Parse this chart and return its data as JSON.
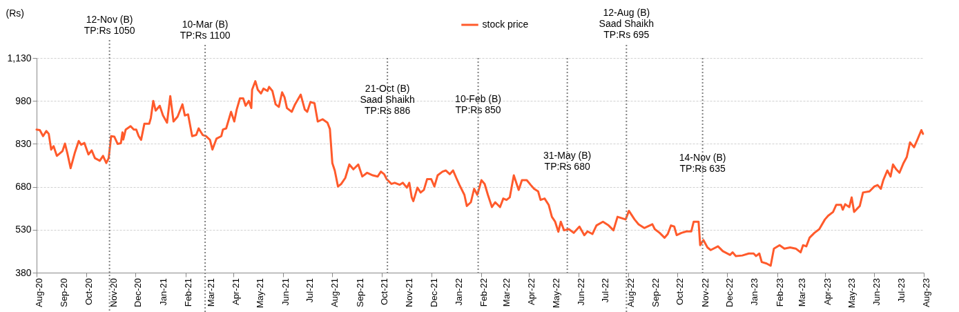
{
  "chart_data": {
    "type": "line",
    "ylabel": "(Rs)",
    "legend": "top",
    "grid": "y",
    "marker": "none",
    "line_style": "solid",
    "xlim": [
      "2020-08-14",
      "2023-08-14"
    ],
    "xticks": [
      {
        "value": "2020-08-14",
        "label": "Aug-20"
      },
      {
        "value": "2020-09-14",
        "label": "Sep-20"
      },
      {
        "value": "2020-10-14",
        "label": "Oct-20"
      },
      {
        "value": "2020-11-14",
        "label": "Nov-20"
      },
      {
        "value": "2020-12-14",
        "label": "Dec-20"
      },
      {
        "value": "2021-01-14",
        "label": "Jan-21"
      },
      {
        "value": "2021-02-14",
        "label": "Feb-21"
      },
      {
        "value": "2021-03-14",
        "label": "Mar-21"
      },
      {
        "value": "2021-04-14",
        "label": "Apr-21"
      },
      {
        "value": "2021-05-14",
        "label": "May-21"
      },
      {
        "value": "2021-06-14",
        "label": "Jun-21"
      },
      {
        "value": "2021-07-14",
        "label": "Jul-21"
      },
      {
        "value": "2021-08-14",
        "label": "Aug-21"
      },
      {
        "value": "2021-09-14",
        "label": "Sep-21"
      },
      {
        "value": "2021-10-14",
        "label": "Oct-21"
      },
      {
        "value": "2021-11-14",
        "label": "Nov-21"
      },
      {
        "value": "2021-12-14",
        "label": "Dec-21"
      },
      {
        "value": "2022-01-14",
        "label": "Jan-22"
      },
      {
        "value": "2022-02-14",
        "label": "Feb-22"
      },
      {
        "value": "2022-03-14",
        "label": "Mar-22"
      },
      {
        "value": "2022-04-14",
        "label": "Apr-22"
      },
      {
        "value": "2022-05-14",
        "label": "May-22"
      },
      {
        "value": "2022-06-14",
        "label": "Jun-22"
      },
      {
        "value": "2022-07-14",
        "label": "Jul-22"
      },
      {
        "value": "2022-08-14",
        "label": "Aug-22"
      },
      {
        "value": "2022-09-14",
        "label": "Sep-22"
      },
      {
        "value": "2022-10-14",
        "label": "Oct-22"
      },
      {
        "value": "2022-11-14",
        "label": "Nov-22"
      },
      {
        "value": "2022-12-14",
        "label": "Dec-22"
      },
      {
        "value": "2023-01-14",
        "label": "Jan-23"
      },
      {
        "value": "2023-02-14",
        "label": "Feb-23"
      },
      {
        "value": "2023-03-14",
        "label": "Mar-23"
      },
      {
        "value": "2023-04-14",
        "label": "Apr-23"
      },
      {
        "value": "2023-05-14",
        "label": "May-23"
      },
      {
        "value": "2023-06-14",
        "label": "Jun-23"
      },
      {
        "value": "2023-07-14",
        "label": "Jul-23"
      },
      {
        "value": "2023-08-14",
        "label": "Aug-23"
      }
    ],
    "ylim": [
      380,
      1130
    ],
    "yticks": [
      380,
      530,
      680,
      830,
      980,
      {
        "value": 1130,
        "label": "1,130"
      }
    ],
    "ref_lines": [
      {
        "axis": "x",
        "value": "2020-11-12",
        "label": "12-Nov (B)\nTP:Rs 1050",
        "color": "#7f7f7f",
        "line_style": "dotted"
      },
      {
        "axis": "x",
        "value": "2021-03-10",
        "label": "10-Mar (B)\nTP:Rs 1100",
        "color": "#7f7f7f",
        "line_style": "dotted"
      },
      {
        "axis": "x",
        "value": "2021-10-21",
        "label": "21-Oct (B)\nSaad Shaikh\nTP:Rs 886",
        "color": "#7f7f7f",
        "line_style": "dotted"
      },
      {
        "axis": "x",
        "value": "2022-02-10",
        "label": "10-Feb (B)\nTP:Rs 850",
        "color": "#7f7f7f",
        "line_style": "dotted"
      },
      {
        "axis": "x",
        "value": "2022-05-31",
        "label": "31-May (B)\nTP:Rs 680",
        "color": "#7f7f7f",
        "line_style": "dotted"
      },
      {
        "axis": "x",
        "value": "2022-08-12",
        "label": "12-Aug (B)\nSaad Shaikh\nTP:Rs 695",
        "color": "#7f7f7f",
        "line_style": "dotted"
      },
      {
        "axis": "x",
        "value": "2022-11-14",
        "label": "14-Nov (B)\nTP:Rs 635",
        "color": "#7f7f7f",
        "line_style": "dotted"
      }
    ],
    "series": [
      {
        "name": "stock price",
        "color": "#ff5a2b",
        "x": [
          "2020-08-14",
          "2020-08-18",
          "2020-08-22",
          "2020-08-26",
          "2020-08-29",
          "2020-09-01",
          "2020-09-04",
          "2020-09-08",
          "2020-09-15",
          "2020-09-18",
          "2020-09-21",
          "2020-09-25",
          "2020-09-30",
          "2020-10-05",
          "2020-10-08",
          "2020-10-12",
          "2020-10-17",
          "2020-10-21",
          "2020-10-25",
          "2020-10-31",
          "2020-11-04",
          "2020-11-08",
          "2020-11-11",
          "2020-11-14",
          "2020-11-18",
          "2020-11-22",
          "2020-11-26",
          "2020-11-28",
          "2020-11-29",
          "2020-12-02",
          "2020-12-08",
          "2020-12-12",
          "2020-12-15",
          "2020-12-18",
          "2020-12-21",
          "2020-12-25",
          "2020-12-31",
          "2021-01-02",
          "2021-01-05",
          "2021-01-08",
          "2021-01-13",
          "2021-01-17",
          "2021-01-22",
          "2021-01-26",
          "2021-01-30",
          "2021-02-04",
          "2021-02-10",
          "2021-02-13",
          "2021-02-17",
          "2021-02-22",
          "2021-02-27",
          "2021-03-02",
          "2021-03-07",
          "2021-03-11",
          "2021-03-16",
          "2021-03-19",
          "2021-03-24",
          "2021-03-30",
          "2021-04-01",
          "2021-04-05",
          "2021-04-11",
          "2021-04-15",
          "2021-04-18",
          "2021-04-22",
          "2021-04-26",
          "2021-04-29",
          "2021-05-03",
          "2021-05-06",
          "2021-05-07",
          "2021-05-11",
          "2021-05-14",
          "2021-05-18",
          "2021-05-21",
          "2021-05-26",
          "2021-05-28",
          "2021-06-01",
          "2021-06-05",
          "2021-06-09",
          "2021-06-13",
          "2021-06-16",
          "2021-06-19",
          "2021-06-25",
          "2021-06-29",
          "2021-07-06",
          "2021-07-11",
          "2021-07-14",
          "2021-07-18",
          "2021-07-23",
          "2021-07-27",
          "2021-08-02",
          "2021-08-08",
          "2021-08-11",
          "2021-08-14",
          "2021-08-17",
          "2021-08-21",
          "2021-08-25",
          "2021-08-30",
          "2021-09-04",
          "2021-09-09",
          "2021-09-15",
          "2021-09-20",
          "2021-09-26",
          "2021-10-03",
          "2021-10-09",
          "2021-10-13",
          "2021-10-17",
          "2021-10-20",
          "2021-10-26",
          "2021-10-30",
          "2021-11-05",
          "2021-11-09",
          "2021-11-14",
          "2021-11-17",
          "2021-11-20",
          "2021-11-22",
          "2021-11-27",
          "2021-12-01",
          "2021-12-05",
          "2021-12-09",
          "2021-12-14",
          "2021-12-18",
          "2021-12-22",
          "2021-12-28",
          "2022-01-01",
          "2022-01-06",
          "2022-01-10",
          "2022-01-14",
          "2022-01-18",
          "2022-01-24",
          "2022-01-27",
          "2022-02-01",
          "2022-02-05",
          "2022-02-09",
          "2022-02-14",
          "2022-02-18",
          "2022-02-22",
          "2022-02-27",
          "2022-03-03",
          "2022-03-09",
          "2022-03-13",
          "2022-03-17",
          "2022-03-21",
          "2022-03-26",
          "2022-04-01",
          "2022-04-05",
          "2022-04-11",
          "2022-04-16",
          "2022-04-20",
          "2022-04-25",
          "2022-04-28",
          "2022-05-03",
          "2022-05-08",
          "2022-05-12",
          "2022-05-16",
          "2022-05-20",
          "2022-05-23",
          "2022-05-27",
          "2022-06-02",
          "2022-06-08",
          "2022-06-15",
          "2022-06-21",
          "2022-06-25",
          "2022-07-01",
          "2022-07-06",
          "2022-07-14",
          "2022-07-21",
          "2022-07-27",
          "2022-08-01",
          "2022-08-11",
          "2022-08-15",
          "2022-08-16",
          "2022-08-22",
          "2022-08-27",
          "2022-09-03",
          "2022-09-13",
          "2022-09-16",
          "2022-09-22",
          "2022-09-28",
          "2022-10-02",
          "2022-10-06",
          "2022-10-10",
          "2022-10-13",
          "2022-10-19",
          "2022-10-25",
          "2022-10-31",
          "2022-11-03",
          "2022-11-09",
          "2022-11-11",
          "2022-11-15",
          "2022-11-20",
          "2022-11-24",
          "2022-12-03",
          "2022-12-09",
          "2022-12-18",
          "2022-12-21",
          "2022-12-25",
          "2023-01-02",
          "2023-01-10",
          "2023-01-16",
          "2023-01-19",
          "2023-01-23",
          "2023-01-26",
          "2023-02-01",
          "2023-02-06",
          "2023-02-10",
          "2023-02-17",
          "2023-02-23",
          "2023-03-02",
          "2023-03-09",
          "2023-03-15",
          "2023-03-18",
          "2023-03-22",
          "2023-03-26",
          "2023-04-01",
          "2023-04-07",
          "2023-04-14",
          "2023-04-18",
          "2023-04-24",
          "2023-04-28",
          "2023-05-04",
          "2023-05-06",
          "2023-05-09",
          "2023-05-14",
          "2023-05-17",
          "2023-05-20",
          "2023-05-27",
          "2023-05-31",
          "2023-06-08",
          "2023-06-14",
          "2023-06-18",
          "2023-06-22",
          "2023-06-25",
          "2023-06-30",
          "2023-07-04",
          "2023-07-07",
          "2023-07-11",
          "2023-07-15",
          "2023-07-20",
          "2023-07-24",
          "2023-07-28",
          "2023-08-02",
          "2023-08-06",
          "2023-08-11",
          "2023-08-13"
        ],
        "values": [
          880,
          878,
          857,
          875,
          865,
          810,
          822,
          788,
          805,
          831,
          797,
          745,
          797,
          840,
          827,
          833,
          793,
          807,
          780,
          771,
          788,
          763,
          780,
          857,
          855,
          830,
          832,
          870,
          845,
          880,
          892,
          880,
          880,
          857,
          844,
          900,
          900,
          920,
          980,
          946,
          963,
          929,
          904,
          997,
          908,
          925,
          968,
          929,
          933,
          857,
          861,
          884,
          861,
          857,
          844,
          810,
          848,
          857,
          880,
          884,
          942,
          908,
          950,
          989,
          989,
          963,
          980,
          955,
          1019,
          1049,
          1019,
          1006,
          1023,
          1015,
          1029,
          1015,
          968,
          959,
          1010,
          993,
          955,
          942,
          968,
          1002,
          950,
          942,
          976,
          972,
          908,
          916,
          904,
          882,
          763,
          737,
          681,
          690,
          711,
          758,
          741,
          758,
          716,
          729,
          720,
          716,
          733,
          724,
          707,
          690,
          694,
          687,
          694,
          677,
          694,
          643,
          630,
          677,
          660,
          669,
          707,
          707,
          681,
          720,
          733,
          737,
          724,
          737,
          711,
          686,
          652,
          613,
          626,
          673,
          652,
          703,
          690,
          652,
          609,
          626,
          609,
          639,
          634,
          643,
          720,
          669,
          703,
          703,
          686,
          673,
          664,
          634,
          639,
          617,
          575,
          558,
          523,
          558,
          528,
          532,
          519,
          541,
          511,
          524,
          515,
          545,
          558,
          545,
          528,
          575,
          566,
          596,
          592,
          566,
          549,
          536,
          549,
          532,
          519,
          502,
          515,
          545,
          541,
          511,
          519,
          524,
          524,
          558,
          558,
          476,
          494,
          468,
          459,
          472,
          455,
          442,
          451,
          438,
          440,
          447,
          447,
          438,
          447,
          417,
          412,
          404,
          464,
          476,
          464,
          468,
          464,
          451,
          476,
          472,
          502,
          519,
          532,
          566,
          579,
          592,
          617,
          617,
          600,
          619,
          609,
          643,
          592,
          613,
          660,
          664,
          681,
          686,
          673,
          703,
          737,
          716,
          758,
          741,
          729,
          763,
          784,
          835,
          818,
          844,
          878,
          865
        ]
      }
    ]
  }
}
